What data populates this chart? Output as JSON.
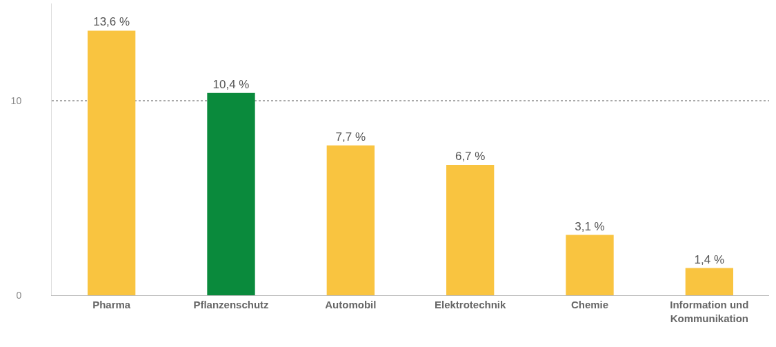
{
  "chart_data": {
    "type": "bar",
    "categories": [
      "Pharma",
      "Pflanzenschutz",
      "Automobil",
      "Elektrotechnik",
      "Chemie",
      "Information und Kommunikation"
    ],
    "values": [
      13.6,
      10.4,
      7.7,
      6.7,
      3.1,
      1.4
    ],
    "colors": [
      "#f9c440",
      "#0a8a3c",
      "#f9c440",
      "#f9c440",
      "#f9c440",
      "#f9c440"
    ],
    "value_labels": [
      "13,6 %",
      "10,4 %",
      "7,7 %",
      "6,7 %",
      "3,1 %",
      "1,4 %"
    ],
    "ylim": [
      0,
      15
    ],
    "yticks": [
      0,
      10
    ],
    "grid": "y"
  }
}
